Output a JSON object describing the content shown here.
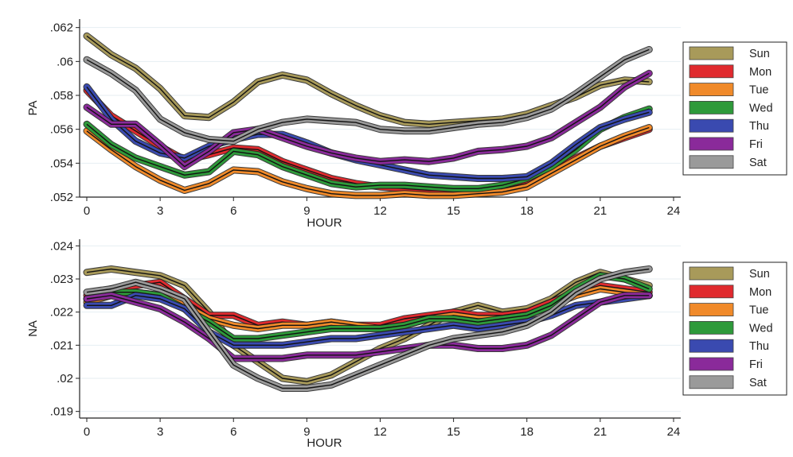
{
  "colors": {
    "Sun": "#a89a5a",
    "Mon": "#e02a2e",
    "Tue": "#f08a2a",
    "Wed": "#2e9a3a",
    "Thu": "#3a4ab0",
    "Fri": "#8a2a9a",
    "Sat": "#9a9a9a"
  },
  "chart_data": [
    {
      "type": "line",
      "title": "",
      "xlabel": "HOUR",
      "ylabel": "PA",
      "xlim": [
        0,
        24
      ],
      "ylim": [
        0.052,
        0.0625
      ],
      "x_ticks": [
        0,
        3,
        6,
        9,
        12,
        15,
        18,
        21,
        24
      ],
      "y_ticks": [
        0.052,
        0.054,
        0.056,
        0.058,
        0.06,
        0.062
      ],
      "y_tick_labels": [
        ".052",
        ".054",
        ".056",
        ".058",
        ".06",
        ".062"
      ],
      "grid": true,
      "legend_position": "right",
      "x": [
        0,
        1,
        2,
        3,
        4,
        5,
        6,
        7,
        8,
        9,
        10,
        11,
        12,
        13,
        14,
        15,
        16,
        17,
        18,
        19,
        20,
        21,
        22,
        23
      ],
      "series": [
        {
          "name": "Sun",
          "values": [
            0.0615,
            0.0604,
            0.0596,
            0.0584,
            0.0568,
            0.0567,
            0.0576,
            0.0588,
            0.0592,
            0.0589,
            0.0581,
            0.0574,
            0.0568,
            0.0564,
            0.0563,
            0.0564,
            0.0565,
            0.0566,
            0.0569,
            0.0574,
            0.0579,
            0.0586,
            0.0589,
            0.0588
          ]
        },
        {
          "name": "Mon",
          "values": [
            0.0583,
            0.0568,
            0.0559,
            0.055,
            0.0542,
            0.0545,
            0.0549,
            0.0548,
            0.0541,
            0.0536,
            0.0531,
            0.0528,
            0.0526,
            0.0525,
            0.0524,
            0.0524,
            0.0524,
            0.0525,
            0.0528,
            0.0535,
            0.0543,
            0.055,
            0.0555,
            0.056
          ]
        },
        {
          "name": "Tue",
          "values": [
            0.0559,
            0.0548,
            0.0538,
            0.053,
            0.0524,
            0.0528,
            0.0536,
            0.0535,
            0.0529,
            0.0525,
            0.0522,
            0.0521,
            0.0521,
            0.0522,
            0.0521,
            0.0521,
            0.0522,
            0.0523,
            0.0526,
            0.0534,
            0.0542,
            0.055,
            0.0556,
            0.0561
          ]
        },
        {
          "name": "Wed",
          "values": [
            0.0563,
            0.0551,
            0.0543,
            0.0538,
            0.0533,
            0.0535,
            0.0547,
            0.0545,
            0.0538,
            0.0533,
            0.0528,
            0.0526,
            0.0527,
            0.0527,
            0.0526,
            0.0525,
            0.0525,
            0.0527,
            0.0531,
            0.0538,
            0.0548,
            0.056,
            0.0567,
            0.0572
          ]
        },
        {
          "name": "Thu",
          "values": [
            0.0585,
            0.0566,
            0.0553,
            0.0546,
            0.0543,
            0.055,
            0.0554,
            0.0557,
            0.0557,
            0.0552,
            0.0546,
            0.0542,
            0.0539,
            0.0536,
            0.0533,
            0.0532,
            0.0531,
            0.0531,
            0.0532,
            0.054,
            0.0551,
            0.0561,
            0.0566,
            0.057
          ]
        },
        {
          "name": "Fri",
          "values": [
            0.0573,
            0.0563,
            0.0563,
            0.0551,
            0.0538,
            0.0547,
            0.0558,
            0.056,
            0.0555,
            0.055,
            0.0546,
            0.0543,
            0.0541,
            0.0542,
            0.0541,
            0.0543,
            0.0547,
            0.0548,
            0.055,
            0.0555,
            0.0564,
            0.0573,
            0.0585,
            0.0593
          ]
        },
        {
          "name": "Sat",
          "values": [
            0.0601,
            0.0593,
            0.0583,
            0.0566,
            0.0558,
            0.0554,
            0.0553,
            0.056,
            0.0564,
            0.0566,
            0.0565,
            0.0564,
            0.056,
            0.0559,
            0.0559,
            0.0561,
            0.0563,
            0.0564,
            0.0567,
            0.0572,
            0.0581,
            0.0591,
            0.0601,
            0.0607
          ]
        }
      ]
    },
    {
      "type": "line",
      "title": "",
      "xlabel": "HOUR",
      "ylabel": "NA",
      "xlim": [
        0,
        24
      ],
      "ylim": [
        0.0188,
        0.0242
      ],
      "x_ticks": [
        0,
        3,
        6,
        9,
        12,
        15,
        18,
        21,
        24
      ],
      "y_ticks": [
        0.019,
        0.02,
        0.021,
        0.022,
        0.023,
        0.024
      ],
      "y_tick_labels": [
        ".019",
        ".02",
        ".021",
        ".022",
        ".023",
        ".024"
      ],
      "grid": true,
      "legend_position": "right",
      "x": [
        0,
        1,
        2,
        3,
        4,
        5,
        6,
        7,
        8,
        9,
        10,
        11,
        12,
        13,
        14,
        15,
        16,
        17,
        18,
        19,
        20,
        21,
        22,
        23
      ],
      "series": [
        {
          "name": "Sun",
          "values": [
            0.0232,
            0.0233,
            0.0232,
            0.0231,
            0.0228,
            0.022,
            0.021,
            0.0205,
            0.02,
            0.0199,
            0.0201,
            0.0205,
            0.0209,
            0.0212,
            0.0216,
            0.022,
            0.0222,
            0.022,
            0.0221,
            0.0224,
            0.0229,
            0.0232,
            0.023,
            0.0228
          ]
        },
        {
          "name": "Mon",
          "values": [
            0.0225,
            0.0227,
            0.0228,
            0.0229,
            0.0224,
            0.0219,
            0.0219,
            0.0216,
            0.0217,
            0.0216,
            0.0217,
            0.0216,
            0.0216,
            0.0218,
            0.0219,
            0.022,
            0.0219,
            0.0219,
            0.022,
            0.0223,
            0.0226,
            0.0228,
            0.0227,
            0.0226
          ]
        },
        {
          "name": "Tue",
          "values": [
            0.0223,
            0.0225,
            0.0226,
            0.0225,
            0.0222,
            0.0218,
            0.0216,
            0.0215,
            0.0216,
            0.0216,
            0.0217,
            0.0216,
            0.0215,
            0.0216,
            0.0218,
            0.0219,
            0.0218,
            0.0218,
            0.0219,
            0.0222,
            0.0225,
            0.0227,
            0.0226,
            0.0225
          ]
        },
        {
          "name": "Wed",
          "values": [
            0.0224,
            0.0226,
            0.0226,
            0.0225,
            0.0221,
            0.0217,
            0.0212,
            0.0212,
            0.0213,
            0.0214,
            0.0215,
            0.0215,
            0.0215,
            0.0216,
            0.0218,
            0.0218,
            0.0217,
            0.0218,
            0.0219,
            0.0222,
            0.0227,
            0.0231,
            0.023,
            0.0227
          ]
        },
        {
          "name": "Thu",
          "values": [
            0.0222,
            0.0222,
            0.0225,
            0.0224,
            0.0221,
            0.0214,
            0.021,
            0.021,
            0.021,
            0.0211,
            0.0212,
            0.0212,
            0.0213,
            0.0214,
            0.0215,
            0.0216,
            0.0215,
            0.0216,
            0.0217,
            0.0219,
            0.0222,
            0.0223,
            0.0224,
            0.0225
          ]
        },
        {
          "name": "Fri",
          "values": [
            0.0224,
            0.0225,
            0.0223,
            0.0221,
            0.0217,
            0.0212,
            0.0206,
            0.0206,
            0.0206,
            0.0207,
            0.0207,
            0.0207,
            0.0208,
            0.0209,
            0.021,
            0.021,
            0.0209,
            0.0209,
            0.021,
            0.0213,
            0.0218,
            0.0223,
            0.0225,
            0.0225
          ]
        },
        {
          "name": "Sat",
          "values": [
            0.0226,
            0.0227,
            0.0229,
            0.0227,
            0.0224,
            0.0214,
            0.0204,
            0.02,
            0.0197,
            0.0197,
            0.0198,
            0.0201,
            0.0204,
            0.0207,
            0.021,
            0.0212,
            0.0213,
            0.0214,
            0.0216,
            0.022,
            0.0226,
            0.023,
            0.0232,
            0.0233
          ]
        }
      ]
    }
  ]
}
